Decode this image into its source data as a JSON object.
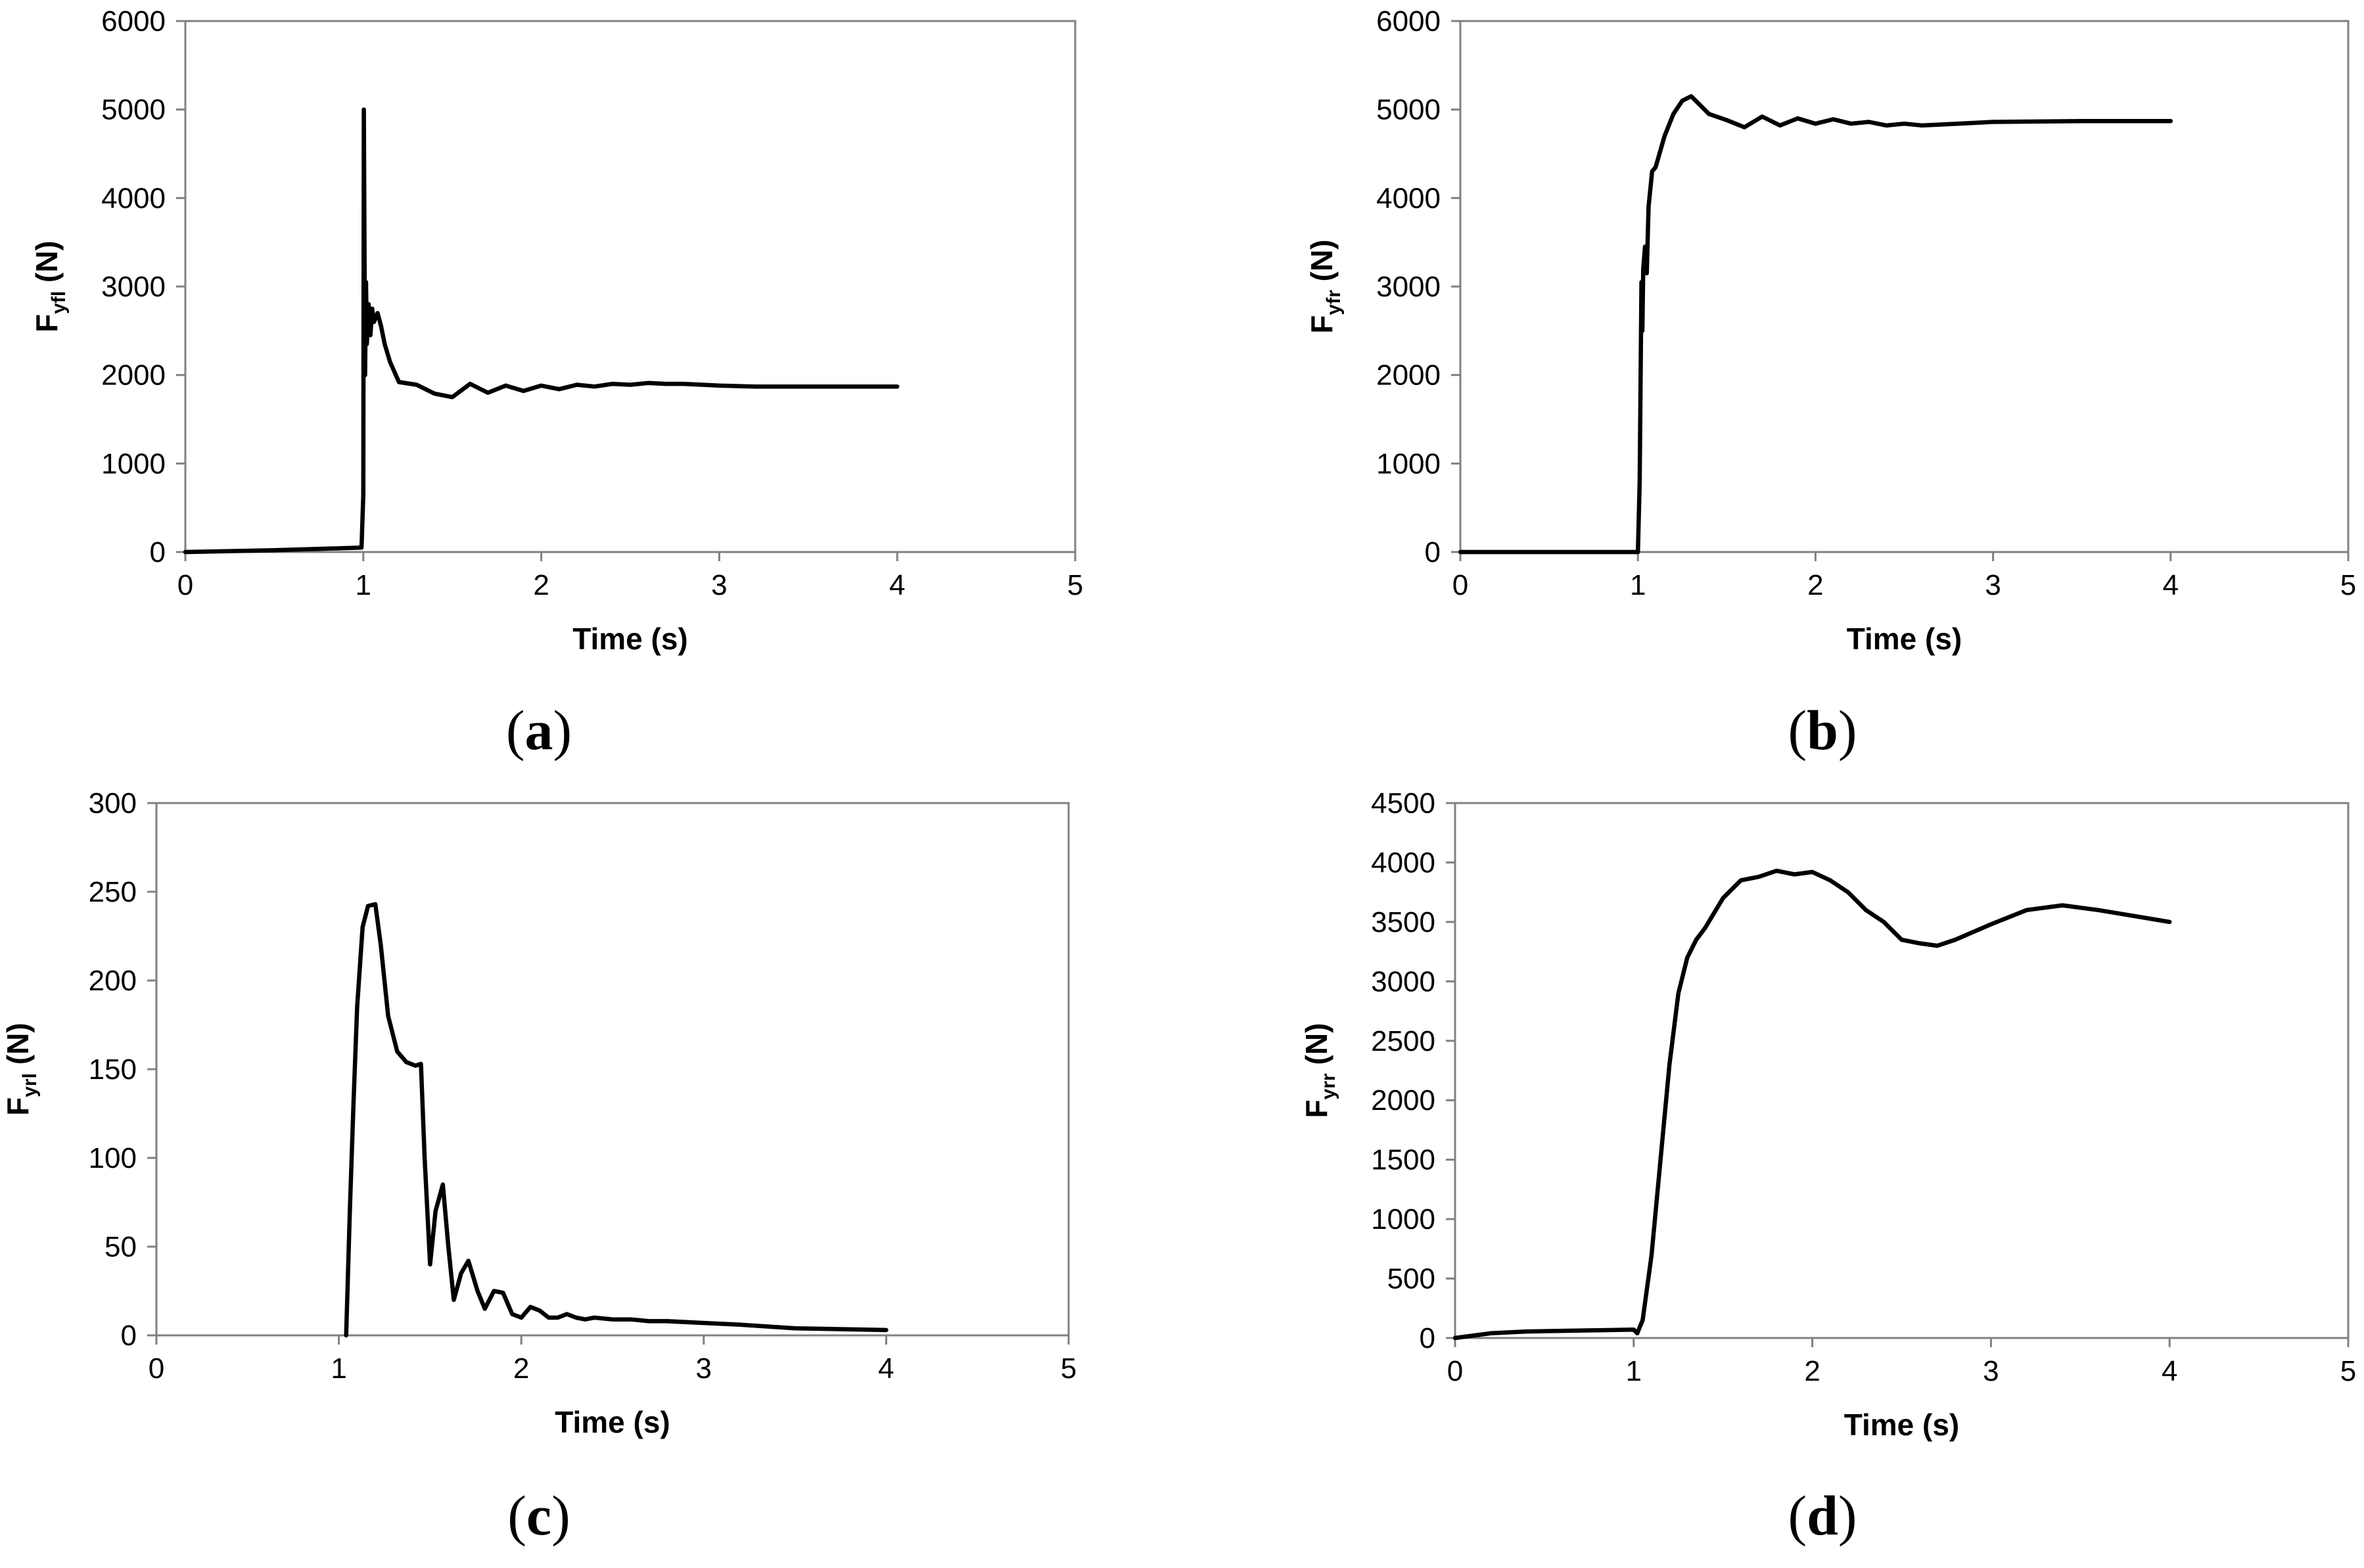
{
  "chart_data": [
    {
      "type": "line",
      "panel_label": "a",
      "xlabel": "Time (s)",
      "ylabel": {
        "main": "F",
        "sub": "yfl",
        "unit": " (N)"
      },
      "xlim": [
        0,
        5
      ],
      "ylim": [
        0,
        6000
      ],
      "xticks": [
        0,
        1,
        2,
        3,
        4,
        5
      ],
      "yticks": [
        0,
        1000,
        2000,
        3000,
        4000,
        5000,
        6000
      ],
      "grid": false,
      "series": [
        {
          "x": [
            0,
            0.5,
            0.99,
            1.0,
            1.003,
            1.01,
            1.015,
            1.02,
            1.03,
            1.04,
            1.05,
            1.06,
            1.08,
            1.1,
            1.12,
            1.15,
            1.2,
            1.3,
            1.4,
            1.5,
            1.6,
            1.7,
            1.8,
            1.9,
            2.0,
            2.1,
            2.2,
            2.3,
            2.4,
            2.5,
            2.6,
            2.7,
            2.8,
            3.0,
            3.2,
            3.5,
            4.0
          ],
          "y": [
            0,
            20,
            50,
            650,
            5000,
            2000,
            3050,
            2350,
            2800,
            2450,
            2750,
            2600,
            2700,
            2550,
            2350,
            2150,
            1920,
            1890,
            1790,
            1750,
            1900,
            1800,
            1880,
            1820,
            1880,
            1840,
            1890,
            1870,
            1900,
            1890,
            1910,
            1900,
            1900,
            1880,
            1870,
            1870,
            1870
          ]
        }
      ]
    },
    {
      "type": "line",
      "panel_label": "b",
      "xlabel": "Time (s)",
      "ylabel": {
        "main": "F",
        "sub": "yfr",
        "unit": " (N)"
      },
      "xlim": [
        0,
        5
      ],
      "ylim": [
        0,
        6000
      ],
      "xticks": [
        0,
        1,
        2,
        3,
        4,
        5
      ],
      "yticks": [
        0,
        1000,
        2000,
        3000,
        4000,
        5000,
        6000
      ],
      "grid": false,
      "series": [
        {
          "x": [
            0,
            0.5,
            1.0,
            1.01,
            1.02,
            1.025,
            1.03,
            1.04,
            1.05,
            1.06,
            1.08,
            1.1,
            1.15,
            1.2,
            1.25,
            1.3,
            1.35,
            1.4,
            1.5,
            1.6,
            1.7,
            1.8,
            1.9,
            2.0,
            2.1,
            2.2,
            2.3,
            2.4,
            2.5,
            2.6,
            2.8,
            3.0,
            3.5,
            4.0
          ],
          "y": [
            0,
            0,
            0,
            800,
            3050,
            2500,
            3200,
            3450,
            3150,
            3900,
            4300,
            4350,
            4700,
            4950,
            5100,
            5150,
            5050,
            4950,
            4880,
            4800,
            4920,
            4820,
            4900,
            4840,
            4890,
            4840,
            4860,
            4820,
            4840,
            4820,
            4840,
            4860,
            4870,
            4870
          ]
        }
      ]
    },
    {
      "type": "line",
      "panel_label": "c",
      "xlabel": "Time (s)",
      "ylabel": {
        "main": "F",
        "sub": "yrl",
        "unit": " (N)"
      },
      "xlim": [
        0,
        5
      ],
      "ylim": [
        0,
        300
      ],
      "xticks": [
        0,
        1,
        2,
        3,
        4,
        5
      ],
      "yticks": [
        0,
        50,
        100,
        150,
        200,
        250,
        300
      ],
      "grid": false,
      "series": [
        {
          "x": [
            1.04,
            1.06,
            1.08,
            1.1,
            1.13,
            1.16,
            1.2,
            1.23,
            1.27,
            1.32,
            1.37,
            1.42,
            1.45,
            1.47,
            1.5,
            1.53,
            1.57,
            1.6,
            1.63,
            1.67,
            1.71,
            1.76,
            1.8,
            1.85,
            1.9,
            1.95,
            2.0,
            2.05,
            2.1,
            2.15,
            2.2,
            2.25,
            2.3,
            2.35,
            2.4,
            2.5,
            2.6,
            2.7,
            2.8,
            3.0,
            3.2,
            3.5,
            4.0
          ],
          "y": [
            0,
            70,
            130,
            185,
            230,
            242,
            243,
            220,
            180,
            160,
            154,
            152,
            153,
            100,
            40,
            70,
            85,
            50,
            20,
            35,
            42,
            25,
            15,
            25,
            24,
            12,
            10,
            16,
            14,
            10,
            10,
            12,
            10,
            9,
            10,
            9,
            9,
            8,
            8,
            7,
            6,
            4,
            3
          ]
        }
      ]
    },
    {
      "type": "line",
      "panel_label": "d",
      "xlabel": "Time (s)",
      "ylabel": {
        "main": "F",
        "sub": "yrr",
        "unit": " (N)"
      },
      "xlim": [
        0,
        5
      ],
      "ylim": [
        0,
        4500
      ],
      "xticks": [
        0,
        1,
        2,
        3,
        4,
        5
      ],
      "yticks": [
        0,
        500,
        1000,
        1500,
        2000,
        2500,
        3000,
        3500,
        4000,
        4500
      ],
      "grid": false,
      "series": [
        {
          "x": [
            0,
            0.1,
            0.2,
            0.4,
            0.6,
            0.8,
            1.0,
            1.02,
            1.05,
            1.1,
            1.15,
            1.2,
            1.25,
            1.3,
            1.35,
            1.4,
            1.5,
            1.6,
            1.7,
            1.8,
            1.9,
            2.0,
            2.1,
            2.2,
            2.3,
            2.4,
            2.5,
            2.6,
            2.7,
            2.8,
            3.0,
            3.2,
            3.4,
            3.6,
            3.8,
            4.0
          ],
          "y": [
            0,
            20,
            40,
            55,
            60,
            65,
            70,
            40,
            150,
            700,
            1500,
            2300,
            2900,
            3200,
            3350,
            3450,
            3700,
            3850,
            3880,
            3930,
            3900,
            3920,
            3850,
            3750,
            3600,
            3500,
            3350,
            3320,
            3300,
            3350,
            3480,
            3600,
            3640,
            3600,
            3550,
            3500
          ]
        }
      ]
    }
  ]
}
